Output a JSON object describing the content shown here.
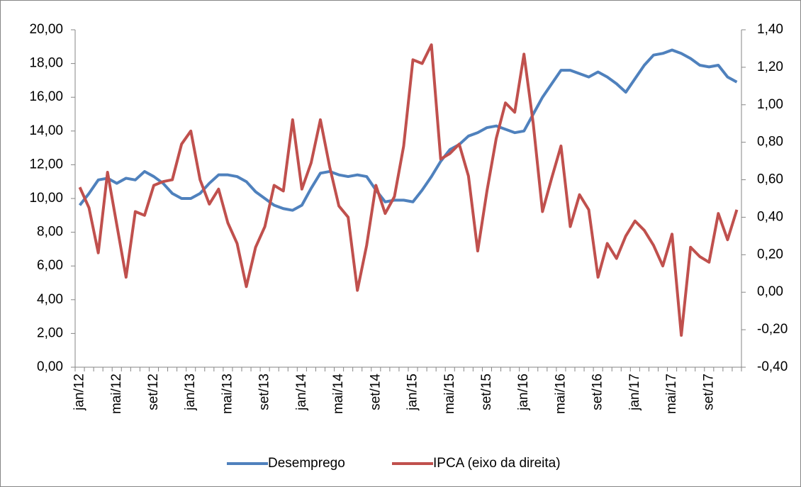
{
  "chart_data": {
    "type": "line",
    "categories": [
      "jan/12",
      null,
      null,
      null,
      "mai/12",
      null,
      null,
      null,
      "set/12",
      null,
      null,
      null,
      "jan/13",
      null,
      null,
      null,
      "mai/13",
      null,
      null,
      null,
      "set/13",
      null,
      null,
      null,
      "jan/14",
      null,
      null,
      null,
      "mai/14",
      null,
      null,
      null,
      "set/14",
      null,
      null,
      null,
      "jan/15",
      null,
      null,
      null,
      "mai/15",
      null,
      null,
      null,
      "set/15",
      null,
      null,
      null,
      "jan/16",
      null,
      null,
      null,
      "mai/16",
      null,
      null,
      null,
      "set/16",
      null,
      null,
      null,
      "jan/17",
      null,
      null,
      null,
      "mai/17",
      null,
      null,
      null,
      "set/17",
      null,
      null,
      null
    ],
    "series": [
      {
        "name": "Desemprego",
        "color": "#4f81bd",
        "values": [
          9.6,
          10.3,
          11.1,
          11.2,
          10.9,
          11.2,
          11.1,
          11.6,
          11.3,
          10.9,
          10.3,
          10.0,
          10.0,
          10.3,
          10.9,
          11.4,
          11.4,
          11.3,
          11.0,
          10.4,
          10.0,
          9.6,
          9.4,
          9.3,
          9.6,
          10.6,
          11.5,
          11.6,
          11.4,
          11.3,
          11.4,
          11.3,
          10.5,
          9.8,
          9.9,
          9.9,
          9.8,
          10.5,
          11.3,
          12.2,
          12.9,
          13.2,
          13.7,
          13.9,
          14.2,
          14.3,
          14.1,
          13.9,
          14.0,
          15.0,
          16.0,
          16.8,
          17.6,
          17.6,
          17.4,
          17.2,
          17.5,
          17.2,
          16.8,
          16.3,
          17.1,
          17.9,
          18.5,
          18.6,
          18.8,
          18.6,
          18.3,
          17.9,
          17.8,
          17.9,
          17.2,
          16.9
        ]
      },
      {
        "name": "IPCA (eixo da direita)",
        "color": "#c0504d",
        "axis": "y2",
        "values": [
          0.56,
          0.45,
          0.21,
          0.64,
          0.36,
          0.08,
          0.43,
          0.41,
          0.57,
          0.59,
          0.6,
          0.79,
          0.86,
          0.6,
          0.47,
          0.55,
          0.37,
          0.26,
          0.03,
          0.24,
          0.35,
          0.57,
          0.54,
          0.92,
          0.55,
          0.69,
          0.92,
          0.67,
          0.46,
          0.4,
          0.01,
          0.25,
          0.57,
          0.42,
          0.51,
          0.78,
          1.24,
          1.22,
          1.32,
          0.71,
          0.74,
          0.79,
          0.62,
          0.22,
          0.54,
          0.82,
          1.01,
          0.96,
          1.27,
          0.9,
          0.43,
          0.61,
          0.78,
          0.35,
          0.52,
          0.44,
          0.08,
          0.26,
          0.18,
          0.3,
          0.38,
          0.33,
          0.25,
          0.14,
          0.31,
          -0.23,
          0.24,
          0.19,
          0.16,
          0.42,
          0.28,
          0.44
        ]
      }
    ],
    "ylim": [
      0,
      20
    ],
    "yticks": [
      {
        "value": 0,
        "label": "0,00"
      },
      {
        "value": 2,
        "label": "2,00"
      },
      {
        "value": 4,
        "label": "4,00"
      },
      {
        "value": 6,
        "label": "6,00"
      },
      {
        "value": 8,
        "label": "8,00"
      },
      {
        "value": 10,
        "label": "10,00"
      },
      {
        "value": 12,
        "label": "12,00"
      },
      {
        "value": 14,
        "label": "14,00"
      },
      {
        "value": 16,
        "label": "16,00"
      },
      {
        "value": 18,
        "label": "18,00"
      },
      {
        "value": 20,
        "label": "20,00"
      }
    ],
    "y2lim": [
      -0.4,
      1.4
    ],
    "y2ticks": [
      {
        "value": -0.4,
        "label": "-0,40"
      },
      {
        "value": -0.2,
        "label": "-0,20"
      },
      {
        "value": 0,
        "label": "0,00"
      },
      {
        "value": 0.2,
        "label": "0,20"
      },
      {
        "value": 0.4,
        "label": "0,40"
      },
      {
        "value": 0.6,
        "label": "0,60"
      },
      {
        "value": 0.8,
        "label": "0,80"
      },
      {
        "value": 1.0,
        "label": "1,00"
      },
      {
        "value": 1.2,
        "label": "1,20"
      },
      {
        "value": 1.4,
        "label": "1,40"
      }
    ],
    "grid": false,
    "legend": "bottom"
  }
}
